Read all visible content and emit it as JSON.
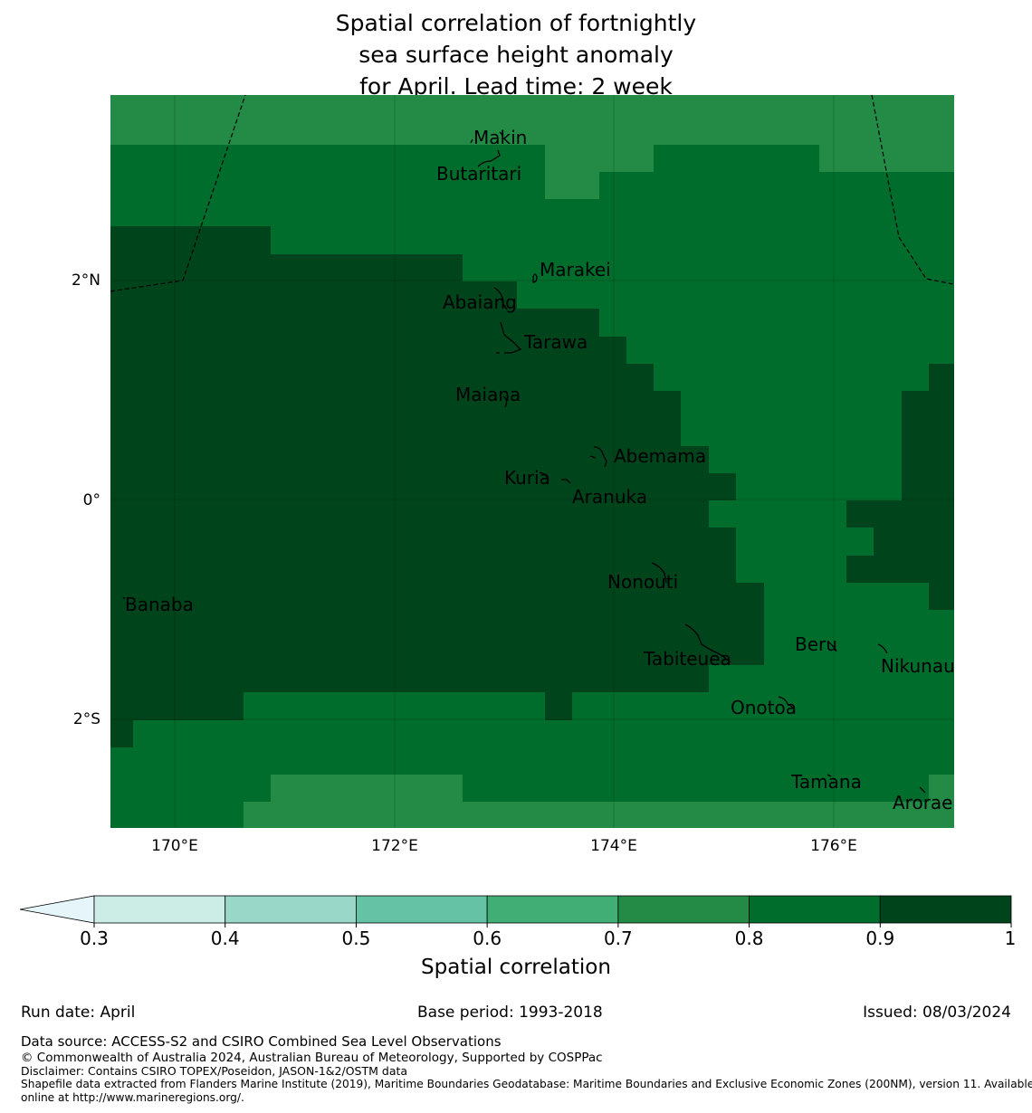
{
  "title": {
    "line1": "Spatial correlation of fortnightly",
    "line2": "sea surface height anomaly",
    "line3": "for April. Lead time: 2 week"
  },
  "map": {
    "x_ticks": [
      "170°E",
      "172°E",
      "174°E",
      "176°E"
    ],
    "y_ticks": [
      "2°N",
      "0°",
      "2°S"
    ],
    "islands": [
      "Makin",
      "Butaritari",
      "Marakei",
      "Abaiang",
      "Tarawa",
      "Maiana",
      "Abemama",
      "Kuria",
      "Aranuka",
      "Nonouti",
      "Banaba",
      "Beru",
      "Tabiteuea",
      "Nikunau",
      "Onotoa",
      "Tamana",
      "Arorae"
    ]
  },
  "colorbar": {
    "ticks": [
      "0.3",
      "0.4",
      "0.5",
      "0.6",
      "0.7",
      "0.8",
      "0.9",
      "1"
    ],
    "label": "Spatial correlation",
    "colors": [
      "#e5f5f9",
      "#ccece6",
      "#99d8c9",
      "#66c2a4",
      "#41ae76",
      "#238b45",
      "#006d2c",
      "#00441b"
    ]
  },
  "footer": {
    "run_date": "Run date: April",
    "base_period": "Base period: 1993-2018",
    "issued": "Issued: 08/03/2024",
    "data_source": "Data source: ACCESS-S2 and CSIRO Combined Sea Level Observations",
    "copyright": "© Commonwealth of Australia 2024, Australian Bureau of Meteorology, Supported by COSPPac",
    "disclaimer": "Disclaimer: Contains CSIRO TOPEX/Poseidon, JASON-1&2/OSTM data",
    "shapefile_line1": "Shapefile data extracted from Flanders Marine Institute (2019), Maritime Boundaries Geodatabase: Maritime Boundaries and Exclusive Economic Zones (200NM), version 11. Available",
    "shapefile_line2": "online at http://www.marineregions.org/."
  }
}
